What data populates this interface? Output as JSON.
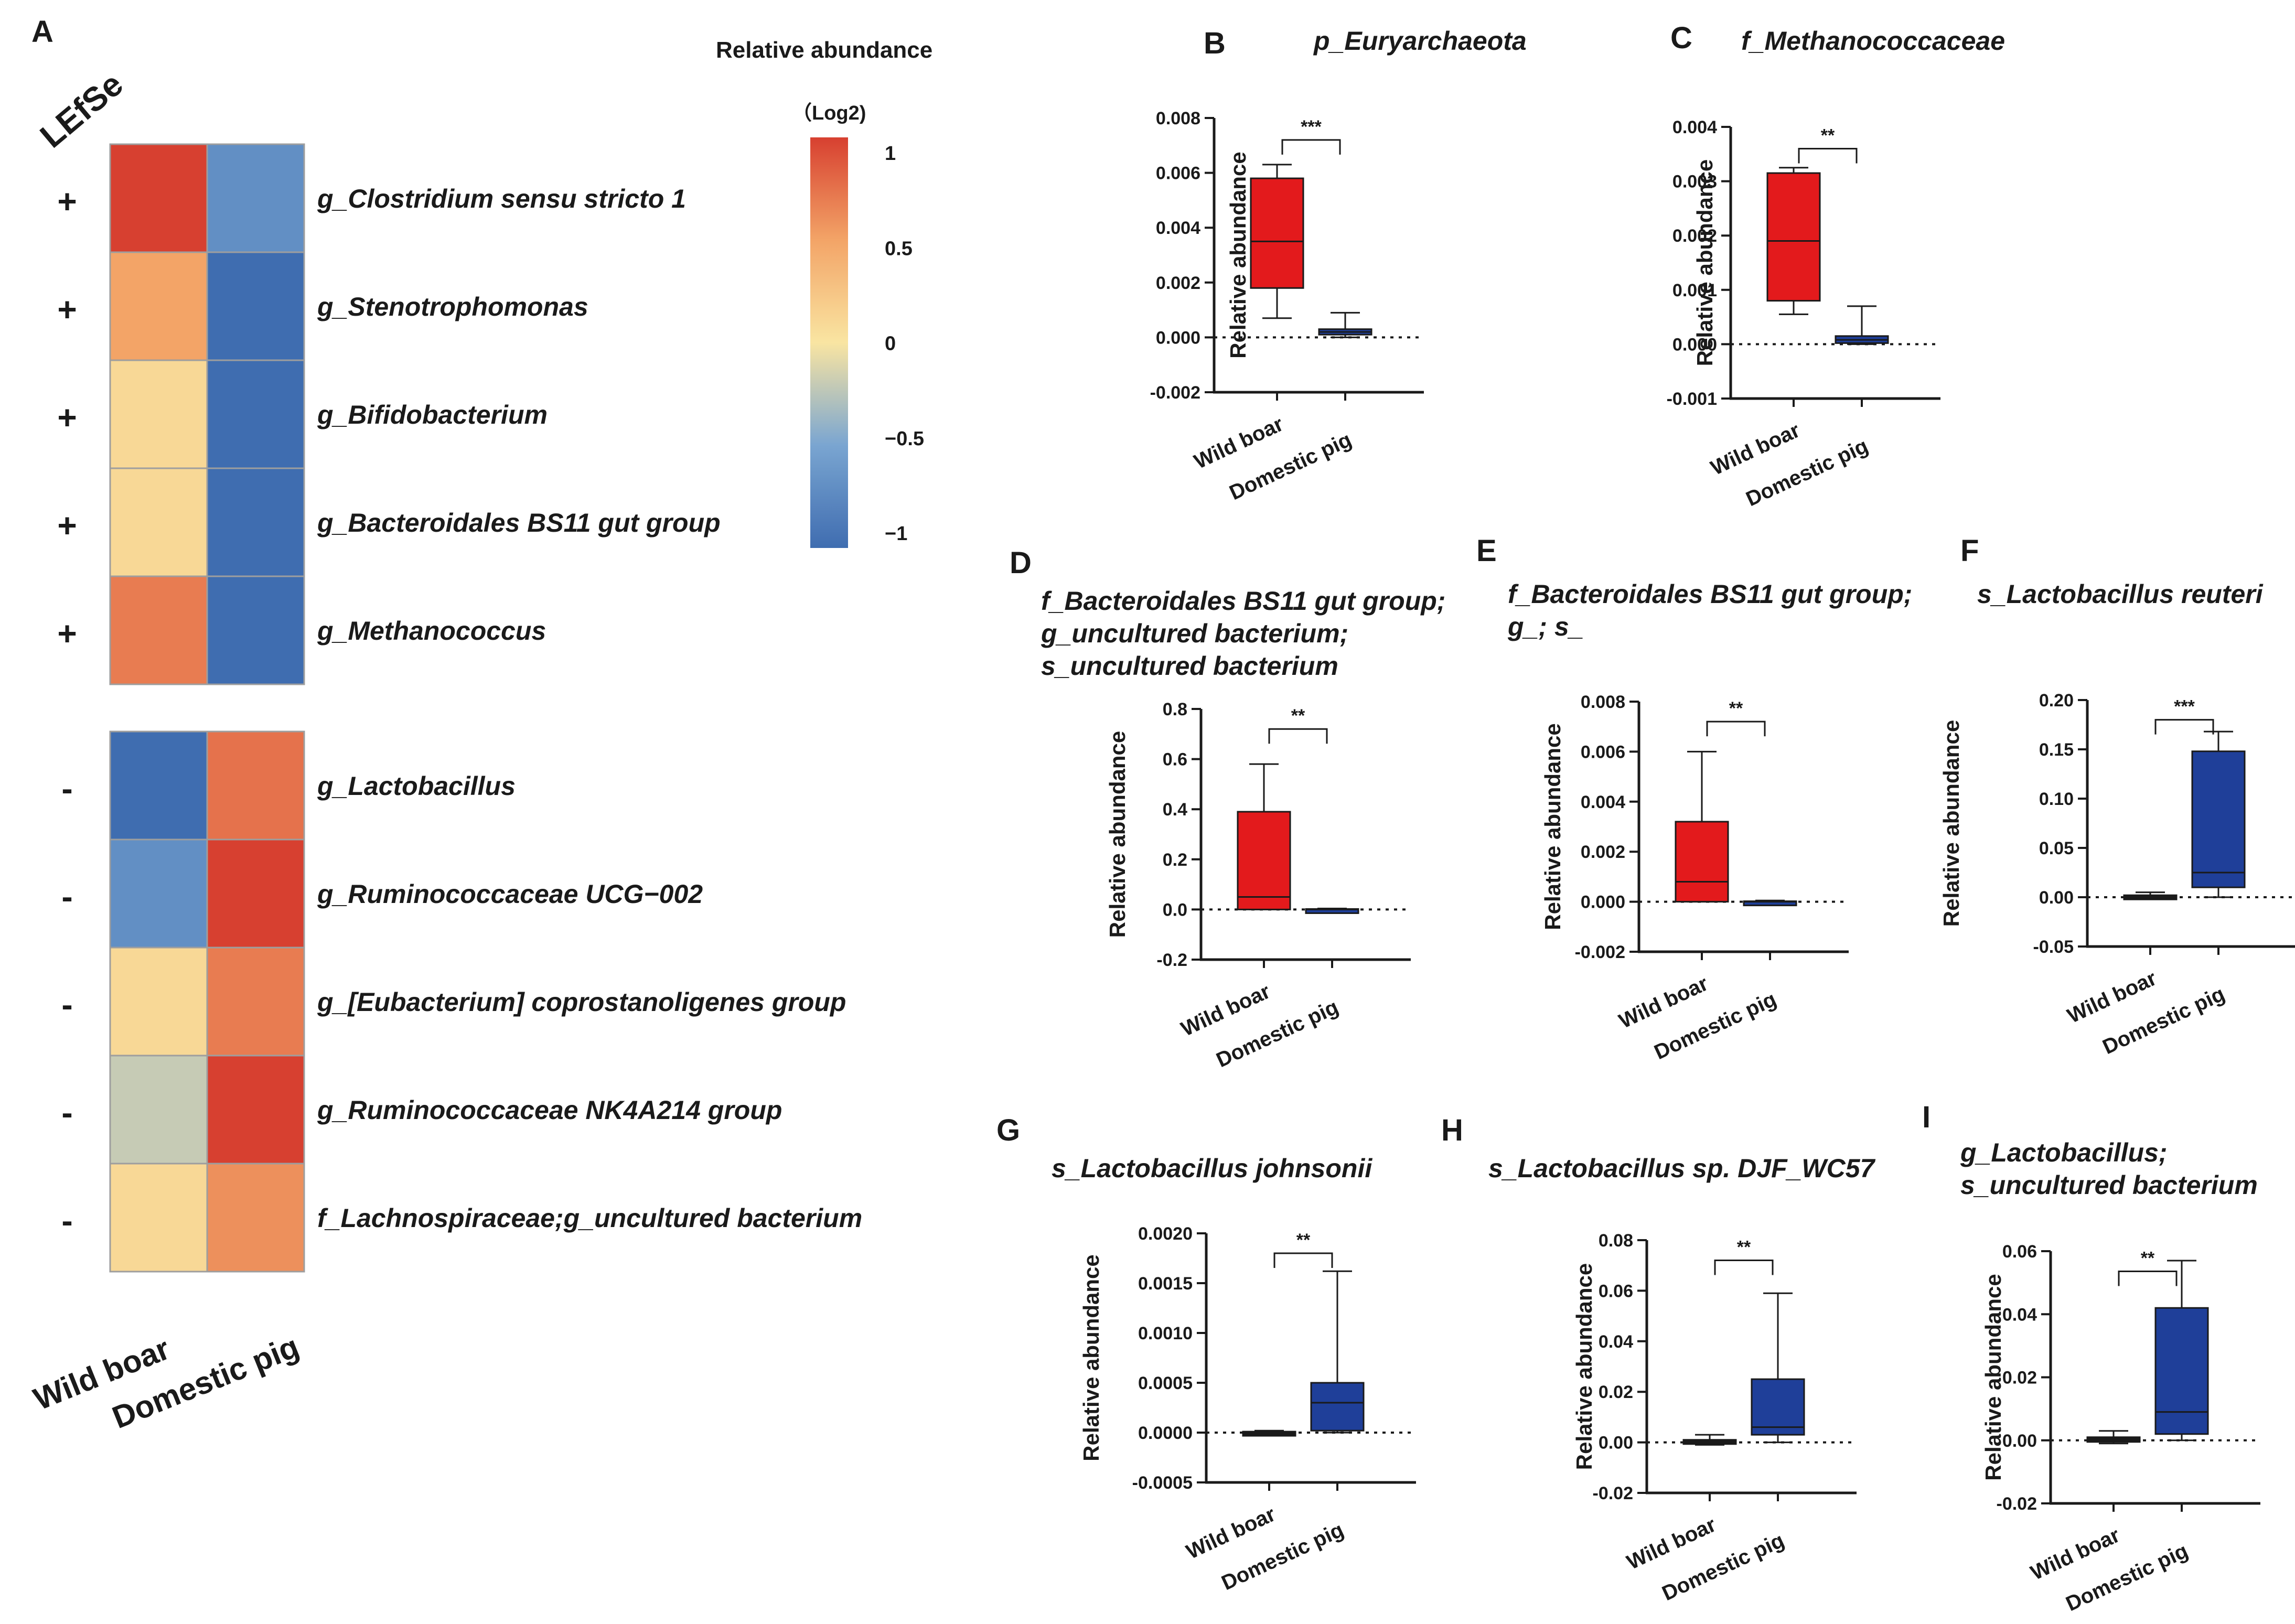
{
  "heatmap": {
    "letter": "A",
    "colorbar_title": "Relative abundance",
    "colorbar_unit": "（Log2)",
    "colorbar_ticks": [
      1,
      0.5,
      0,
      "−0.5",
      "−1"
    ],
    "colorbar_tick_values": [
      1,
      0.5,
      0,
      -0.5,
      -1
    ],
    "lefse_label": "LEfSe",
    "columns": [
      "Wild boar",
      "Domestic pig"
    ],
    "rows": [
      {
        "taxon": "g_Clostridium sensu stricto 1",
        "lefse": "+",
        "values": [
          1.0,
          -0.7
        ]
      },
      {
        "taxon": "g_Stenotrophomonas",
        "lefse": "+",
        "values": [
          0.5,
          -1.0
        ]
      },
      {
        "taxon": "g_Bifidobacterium",
        "lefse": "+",
        "values": [
          0.1,
          -1.0
        ]
      },
      {
        "taxon": "g_Bacteroidales BS11 gut group",
        "lefse": "+",
        "values": [
          0.1,
          -1.0
        ]
      },
      {
        "taxon": "g_Methanococcus",
        "lefse": "+",
        "values": [
          0.7,
          -1.0
        ]
      },
      {
        "taxon": "g_Lactobacillus",
        "lefse": "-",
        "values": [
          -1.0,
          0.75
        ]
      },
      {
        "taxon": "g_Ruminococcaceae UCG−002",
        "lefse": "-",
        "values": [
          -0.7,
          1.0
        ]
      },
      {
        "taxon": "g_[Eubacterium] coprostanoligenes group",
        "lefse": "-",
        "values": [
          0.1,
          0.7
        ]
      },
      {
        "taxon": "g_Ruminococcaceae NK4A214 group",
        "lefse": "-",
        "values": [
          -0.2,
          1.0
        ]
      },
      {
        "taxon": "f_Lachnospiraceae;g_uncultured bacterium",
        "lefse": "-",
        "values": [
          0.1,
          0.6
        ]
      }
    ]
  },
  "chart_data": [
    {
      "letter": "B",
      "type": "box",
      "title_lines": [
        "p_Euryarchaeota"
      ],
      "ylabel": "Relative abundance",
      "categories": [
        "Wild boar",
        "Domestic pig"
      ],
      "ylim": [
        -0.002,
        0.008
      ],
      "ticks": [
        -0.002,
        0.0,
        0.002,
        0.004,
        0.006,
        0.008
      ],
      "tick_labels": [
        "-0.002",
        "0.000",
        "0.002",
        "0.004",
        "0.006",
        "0.008"
      ],
      "boxes": [
        {
          "min": 0.0007,
          "q1": 0.0018,
          "median": 0.0035,
          "q3": 0.0058,
          "max": 0.0063
        },
        {
          "min": 0.0,
          "q1": 0.0001,
          "median": 0.0002,
          "q3": 0.0003,
          "max": 0.0009
        }
      ],
      "significance": "***",
      "colors": [
        "#e31a1c",
        "#1f3f99"
      ]
    },
    {
      "letter": "C",
      "type": "box",
      "title_lines": [
        "f_Methanococcaceae"
      ],
      "ylabel": "Relative abundance",
      "categories": [
        "Wild boar",
        "Domestic pig"
      ],
      "ylim": [
        -0.001,
        0.004
      ],
      "ticks": [
        -0.001,
        0.0,
        0.001,
        0.002,
        0.003,
        0.004
      ],
      "tick_labels": [
        "-0.001",
        "0.000",
        "0.001",
        "0.002",
        "0.003",
        "0.004"
      ],
      "boxes": [
        {
          "min": 0.00055,
          "q1": 0.0008,
          "median": 0.0019,
          "q3": 0.00315,
          "max": 0.00325
        },
        {
          "min": 0.0,
          "q1": 2e-05,
          "median": 8e-05,
          "q3": 0.00015,
          "max": 0.0007
        }
      ],
      "significance": "**",
      "colors": [
        "#e31a1c",
        "#1f3f99"
      ]
    },
    {
      "letter": "D",
      "type": "box",
      "title_lines": [
        "f_Bacteroidales BS11 gut group;",
        "g_uncultured bacterium;",
        "s_uncultured bacterium"
      ],
      "ylabel": "Relative abundance",
      "categories": [
        "Wild boar",
        "Domestic pig"
      ],
      "ylim": [
        -0.2,
        0.8
      ],
      "ticks": [
        -0.2,
        0.0,
        0.2,
        0.4,
        0.6,
        0.8
      ],
      "tick_labels": [
        "-0.2",
        "0.0",
        "0.2",
        "0.4",
        "0.6",
        "0.8"
      ],
      "boxes": [
        {
          "min": 0.0,
          "q1": 0.0,
          "median": 0.05,
          "q3": 0.39,
          "max": 0.58
        },
        {
          "min": 0.0,
          "q1": 0.0,
          "median": 0.0,
          "q3": 0.002,
          "max": 0.004
        }
      ],
      "significance": "**",
      "colors": [
        "#e31a1c",
        "#1f3f99"
      ]
    },
    {
      "letter": "E",
      "type": "box",
      "title_lines": [
        "f_Bacteroidales BS11 gut group;",
        "g_; s_"
      ],
      "ylabel": "Relative abundance",
      "categories": [
        "Wild boar",
        "Domestic pig"
      ],
      "ylim": [
        -0.002,
        0.008
      ],
      "ticks": [
        -0.002,
        0.0,
        0.002,
        0.004,
        0.006,
        0.008
      ],
      "tick_labels": [
        "-0.002",
        "0.000",
        "0.002",
        "0.004",
        "0.006",
        "0.008"
      ],
      "boxes": [
        {
          "min": 0.0,
          "q1": 0.0,
          "median": 0.0008,
          "q3": 0.0032,
          "max": 0.006
        },
        {
          "min": 0.0,
          "q1": 0.0,
          "median": 0.0,
          "q3": 2e-05,
          "max": 5e-05
        }
      ],
      "significance": "**",
      "colors": [
        "#e31a1c",
        "#1f3f99"
      ]
    },
    {
      "letter": "F",
      "type": "box",
      "title_lines": [
        "s_Lactobacillus reuteri"
      ],
      "ylabel": "Relative abundance",
      "categories": [
        "Wild boar",
        "Domestic pig"
      ],
      "ylim": [
        -0.05,
        0.2
      ],
      "ticks": [
        -0.05,
        0.0,
        0.05,
        0.1,
        0.15,
        0.2
      ],
      "tick_labels": [
        "-0.05",
        "0.00",
        "0.05",
        "0.10",
        "0.15",
        "0.20"
      ],
      "boxes": [
        {
          "min": -0.002,
          "q1": -0.001,
          "median": 0.0,
          "q3": 0.002,
          "max": 0.005
        },
        {
          "min": 0.0,
          "q1": 0.01,
          "median": 0.025,
          "q3": 0.148,
          "max": 0.168
        }
      ],
      "significance": "***",
      "colors": [
        "#1a1a1a",
        "#1f3f99"
      ]
    },
    {
      "letter": "G",
      "type": "box",
      "title_lines": [
        "s_Lactobacillus johnsonii"
      ],
      "ylabel": "Relative abundance",
      "categories": [
        "Wild boar",
        "Domestic pig"
      ],
      "ylim": [
        -0.0005,
        0.002
      ],
      "ticks": [
        -0.0005,
        0.0,
        0.0005,
        0.001,
        0.0015,
        0.002
      ],
      "tick_labels": [
        "-0.0005",
        "0.0000",
        "0.0005",
        "0.0010",
        "0.0015",
        "0.0020"
      ],
      "boxes": [
        {
          "min": -2e-05,
          "q1": -1e-05,
          "median": 0.0,
          "q3": 1e-05,
          "max": 2e-05
        },
        {
          "min": 0.0,
          "q1": 2e-05,
          "median": 0.0003,
          "q3": 0.0005,
          "max": 0.00162
        }
      ],
      "significance": "**",
      "colors": [
        "#1a1a1a",
        "#1f3f99"
      ]
    },
    {
      "letter": "H",
      "type": "box",
      "title_lines": [
        "s_Lactobacillus sp. DJF_WC57"
      ],
      "ylabel": "Relative abundance",
      "categories": [
        "Wild boar",
        "Domestic pig"
      ],
      "ylim": [
        -0.02,
        0.08
      ],
      "ticks": [
        -0.02,
        0.0,
        0.02,
        0.04,
        0.06,
        0.08
      ],
      "tick_labels": [
        "-0.02",
        "0.00",
        "0.02",
        "0.04",
        "0.06",
        "0.08"
      ],
      "boxes": [
        {
          "min": -0.001,
          "q1": -0.0005,
          "median": 0.0,
          "q3": 0.001,
          "max": 0.003
        },
        {
          "min": 0.0,
          "q1": 0.003,
          "median": 0.006,
          "q3": 0.025,
          "max": 0.059
        }
      ],
      "significance": "**",
      "colors": [
        "#1a1a1a",
        "#1f3f99"
      ]
    },
    {
      "letter": "I",
      "type": "box",
      "title_lines": [
        "g_Lactobacillus;",
        "s_uncultured bacterium"
      ],
      "ylabel": "Relative abundance",
      "categories": [
        "Wild boar",
        "Domestic pig"
      ],
      "ylim": [
        -0.02,
        0.06
      ],
      "ticks": [
        -0.02,
        0.0,
        0.02,
        0.04,
        0.06
      ],
      "tick_labels": [
        "-0.02",
        "0.00",
        "0.02",
        "0.04",
        "0.06"
      ],
      "boxes": [
        {
          "min": -0.001,
          "q1": -0.0005,
          "median": 0.0,
          "q3": 0.001,
          "max": 0.003
        },
        {
          "min": 0.0,
          "q1": 0.002,
          "median": 0.009,
          "q3": 0.042,
          "max": 0.057
        }
      ],
      "significance": "**",
      "colors": [
        "#1a1a1a",
        "#1f3f99"
      ]
    }
  ]
}
